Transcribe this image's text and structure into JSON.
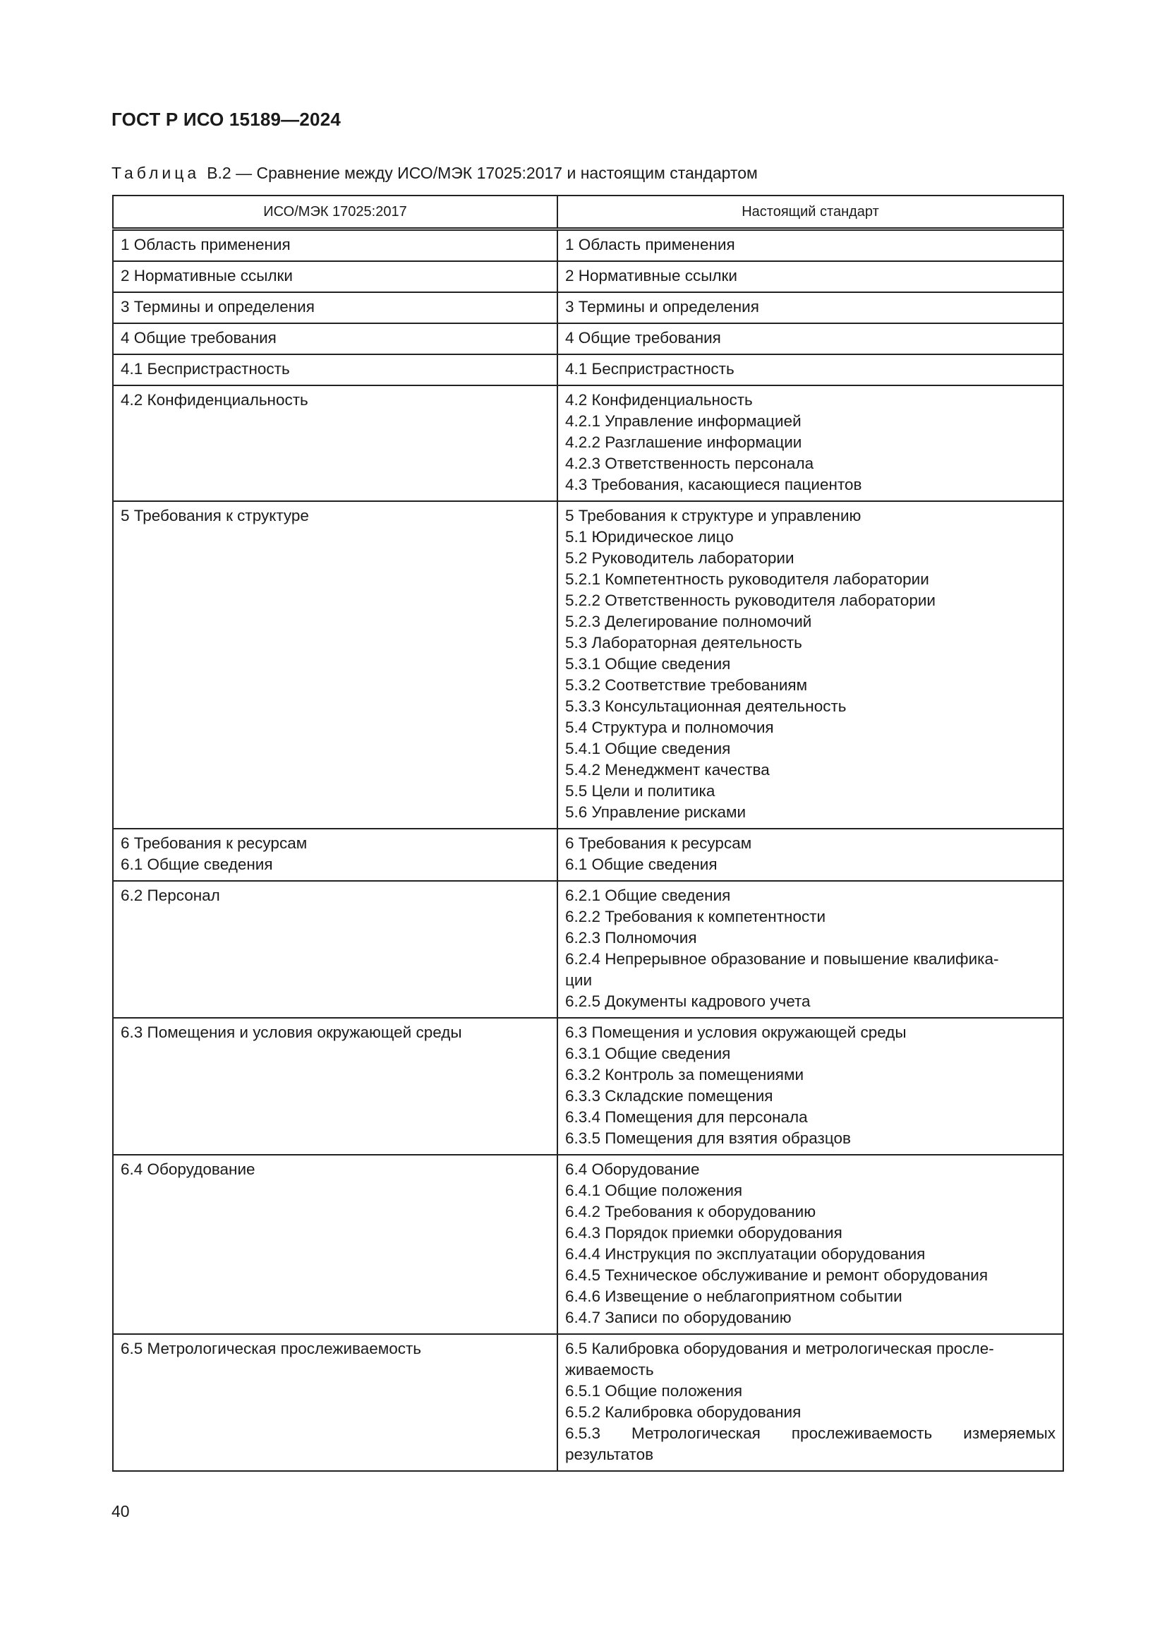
{
  "header": {
    "doc_title": "ГОСТ Р ИСО 15189—2024"
  },
  "caption": {
    "label": "Таблица",
    "text": "В.2 — Сравнение между ИСО/МЭК 17025:2017 и настоящим стандартом"
  },
  "table": {
    "columns": [
      "ИСО/МЭК 17025:2017",
      "Настоящий стандарт"
    ],
    "rows": [
      {
        "left": [
          "1 Область применения"
        ],
        "right": [
          "1 Область применения"
        ]
      },
      {
        "left": [
          "2 Нормативные ссылки"
        ],
        "right": [
          "2 Нормативные ссылки"
        ]
      },
      {
        "left": [
          "3 Термины и определения"
        ],
        "right": [
          "3 Термины и определения"
        ]
      },
      {
        "left": [
          "4 Общие требования"
        ],
        "right": [
          "4 Общие требования"
        ]
      },
      {
        "left": [
          "4.1 Беспристрастность"
        ],
        "right": [
          "4.1 Беспристрастность"
        ]
      },
      {
        "left": [
          "4.2 Конфиденциальность"
        ],
        "right": [
          "4.2 Конфиденциальность",
          "4.2.1 Управление информацией",
          "4.2.2 Разглашение информации",
          "4.2.3 Ответственность персонала",
          "4.3 Требования, касающиеся пациентов"
        ]
      },
      {
        "left": [
          "5 Требования к структуре"
        ],
        "right": [
          "5 Требования к структуре и управлению",
          "5.1 Юридическое лицо",
          "5.2 Руководитель лаборатории",
          "5.2.1 Компетентность руководителя лаборатории",
          "5.2.2 Ответственность руководителя лаборатории",
          "5.2.3 Делегирование полномочий",
          "5.3 Лабораторная деятельность",
          "5.3.1 Общие сведения",
          "5.3.2 Соответствие требованиям",
          "5.3.3 Консультационная деятельность",
          "5.4 Структура и полномочия",
          "5.4.1 Общие сведения",
          "5.4.2 Менеджмент качества",
          "5.5 Цели и политика",
          "5.6 Управление рисками"
        ]
      },
      {
        "left": [
          "6 Требования к ресурсам",
          "6.1 Общие сведения"
        ],
        "right": [
          "6 Требования к ресурсам",
          "6.1 Общие сведения"
        ]
      },
      {
        "left": [
          "6.2 Персонал"
        ],
        "right": [
          "6.2.1 Общие сведения",
          "6.2.2 Требования к компетентности",
          "6.2.3 Полномочия",
          "6.2.4 Непрерывное образование и повышение квалифика-",
          "ции",
          "6.2.5 Документы кадрового учета"
        ]
      },
      {
        "left": [
          "6.3 Помещения и условия окружающей среды"
        ],
        "right": [
          "6.3 Помещения и условия окружающей среды",
          "6.3.1 Общие сведения",
          "6.3.2 Контроль за помещениями",
          "6.3.3 Складские помещения",
          "6.3.4 Помещения для персонала",
          "6.3.5 Помещения для взятия образцов"
        ]
      },
      {
        "left": [
          "6.4 Оборудование"
        ],
        "right": [
          "6.4 Оборудование",
          "6.4.1 Общие положения",
          "6.4.2 Требования к оборудованию",
          "6.4.3 Порядок приемки оборудования",
          "6.4.4 Инструкция по эксплуатации оборудования",
          "6.4.5 Техническое обслуживание и ремонт оборудования",
          "6.4.6 Извещение о неблагоприятном событии",
          "6.4.7 Записи по оборудованию"
        ]
      },
      {
        "left": [
          "6.5 Метрологическая прослеживаемость"
        ],
        "right": [
          "6.5 Калибровка оборудования и метрологическая просле-",
          "живаемость",
          "6.5.1 Общие положения",
          "6.5.2 Калибровка оборудования",
          "6.5.3 Метрологическая прослеживаемость измеряемых",
          "результатов"
        ]
      }
    ]
  },
  "footer": {
    "page_number": "40"
  }
}
